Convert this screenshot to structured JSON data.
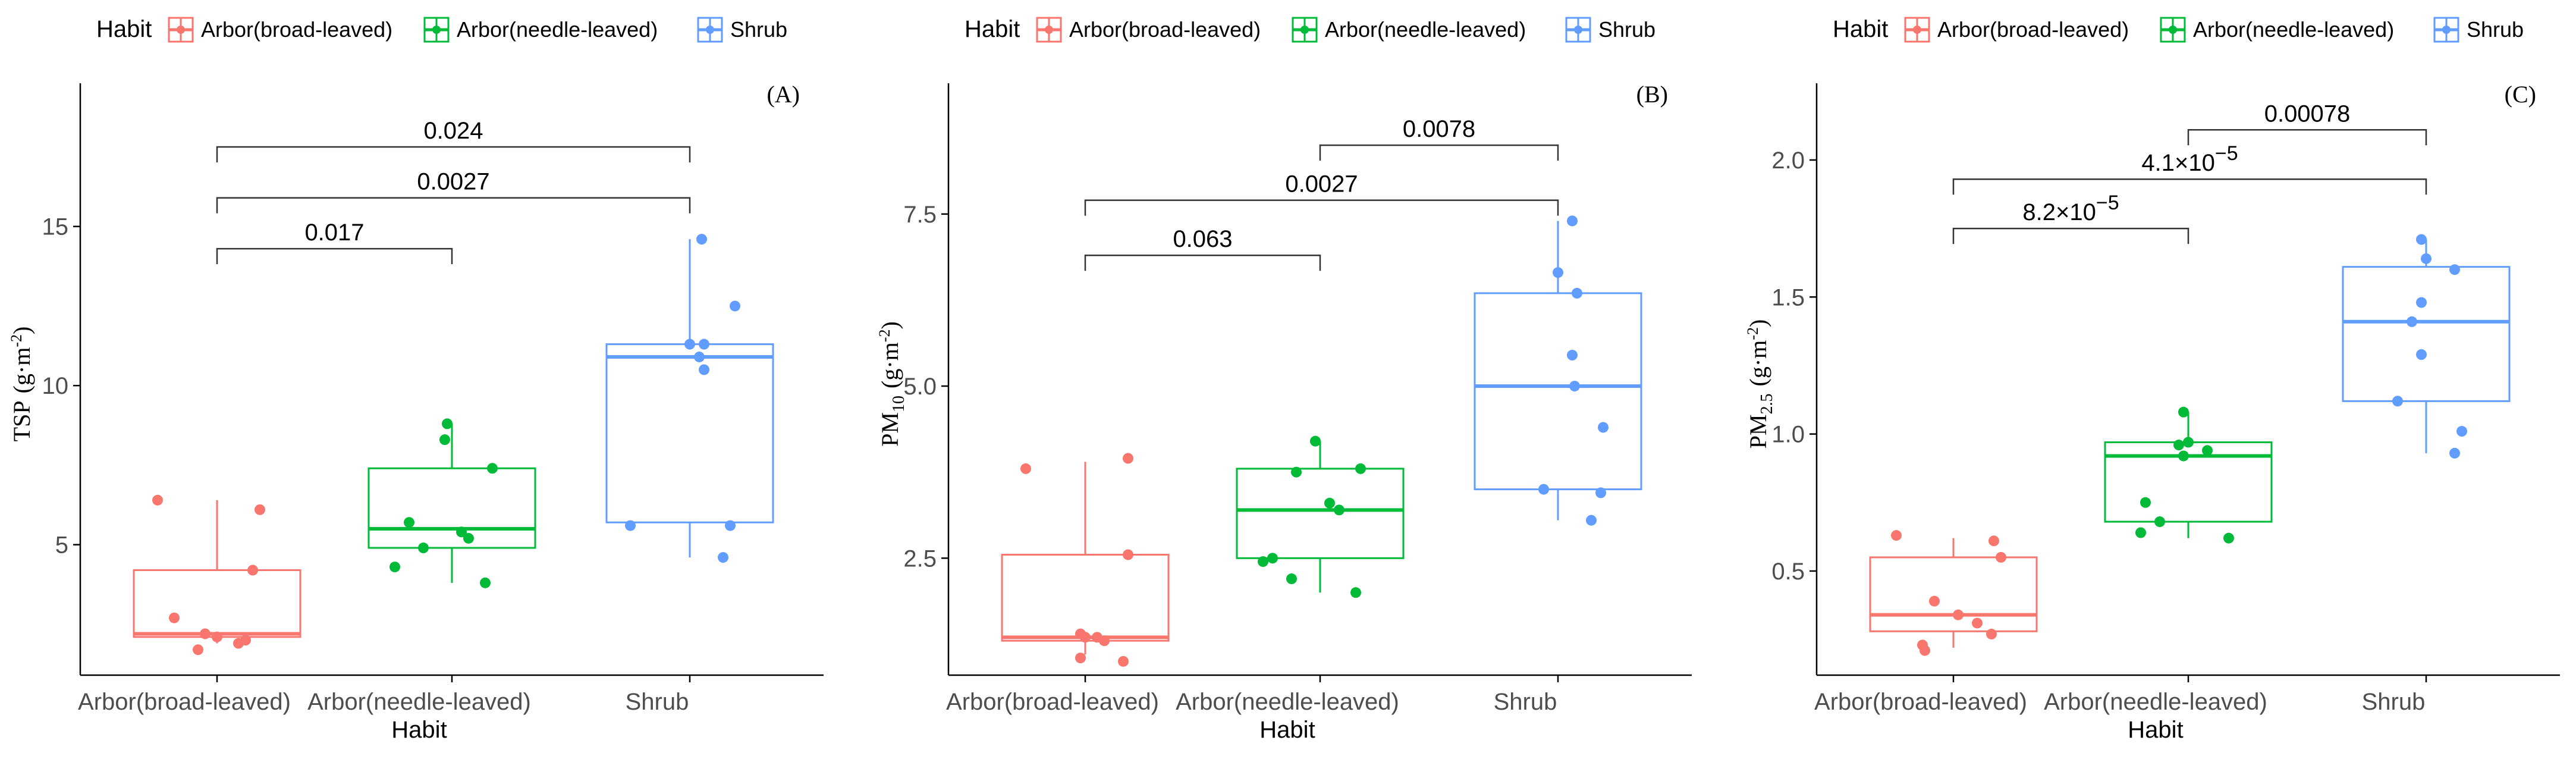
{
  "colors": {
    "broad": "#F8766D",
    "needle": "#00BA38",
    "shrub": "#619CFF",
    "axis": "#000000",
    "tick_text": "#4d4d4d",
    "bracket": "#333333"
  },
  "chart_data": [
    {
      "type": "box",
      "panel_label": "(A)",
      "legend": {
        "title": "Habit",
        "entries": [
          "Arbor(broad-leaved)",
          "Arbor(needle-leaved)",
          "Shrub"
        ],
        "position": "top"
      },
      "ylabel": {
        "main": "TSP",
        "sub": "",
        "unit_pre": "(g·m",
        "unit_exp": "-2",
        "unit_post": ")"
      },
      "xlabel": "Habit",
      "categories": [
        "Arbor(broad-leaved)",
        "Arbor(needle-leaved)",
        "Shrub"
      ],
      "ylim": [
        0.9,
        19.5
      ],
      "yticks": [
        5,
        10,
        15
      ],
      "ytick_labels": [
        "5",
        "10",
        "15"
      ],
      "boxes": [
        {
          "min": 1.9,
          "q1": 2.1,
          "median": 2.2,
          "q3": 4.2,
          "max": 6.4
        },
        {
          "min": 3.8,
          "q1": 4.9,
          "median": 5.5,
          "q3": 7.4,
          "max": 8.8
        },
        {
          "min": 4.6,
          "q1": 5.7,
          "median": 10.9,
          "q3": 11.3,
          "max": 14.6
        }
      ],
      "points": [
        [
          [
            6.4,
            -0.25
          ],
          [
            6.1,
            0.18
          ],
          [
            4.2,
            0.15
          ],
          [
            2.7,
            -0.18
          ],
          [
            2.2,
            -0.05
          ],
          [
            2.1,
            0.0
          ],
          [
            2.0,
            0.12
          ],
          [
            1.9,
            0.09
          ],
          [
            1.7,
            -0.08
          ]
        ],
        [
          [
            8.8,
            -0.02
          ],
          [
            8.3,
            -0.03
          ],
          [
            7.4,
            0.17
          ],
          [
            5.7,
            -0.18
          ],
          [
            5.4,
            0.04
          ],
          [
            5.2,
            0.07
          ],
          [
            4.9,
            -0.12
          ],
          [
            4.3,
            -0.24
          ],
          [
            3.8,
            0.14
          ]
        ],
        [
          [
            14.6,
            0.05
          ],
          [
            12.5,
            0.19
          ],
          [
            11.3,
            0.0
          ],
          [
            11.3,
            0.06
          ],
          [
            10.9,
            0.04
          ],
          [
            10.5,
            0.06
          ],
          [
            5.6,
            0.17
          ],
          [
            5.6,
            -0.25
          ],
          [
            4.6,
            0.14
          ]
        ]
      ],
      "brackets": [
        {
          "from": 0,
          "to": 2,
          "y": 17.5,
          "label": "0.024",
          "leftdrop": 1
        },
        {
          "from": 0,
          "to": 2,
          "y": 15.9,
          "label": "0.0027",
          "leftdrop": 0
        },
        {
          "from": 0,
          "to": 1,
          "y": 14.3,
          "label": "0.017",
          "leftdrop": 0
        }
      ]
    },
    {
      "type": "box",
      "panel_label": "(B)",
      "legend": {
        "title": "Habit",
        "entries": [
          "Arbor(broad-leaved)",
          "Arbor(needle-leaved)",
          "Shrub"
        ],
        "position": "top"
      },
      "ylabel": {
        "main": "PM",
        "sub": "10",
        "unit_pre": "(g·m",
        "unit_exp": "-2",
        "unit_post": ")"
      },
      "xlabel": "Habit",
      "categories": [
        "Arbor(broad-leaved)",
        "Arbor(needle-leaved)",
        "Shrub"
      ],
      "ylim": [
        0.8,
        9.4
      ],
      "yticks": [
        2.5,
        5.0,
        7.5
      ],
      "ytick_labels": [
        "2.5",
        "5.0",
        "7.5"
      ],
      "boxes": [
        {
          "min": 1.1,
          "q1": 1.3,
          "median": 1.35,
          "q3": 2.55,
          "max": 3.9
        },
        {
          "min": 2.0,
          "q1": 2.5,
          "median": 3.2,
          "q3": 3.8,
          "max": 4.2
        },
        {
          "min": 3.05,
          "q1": 3.5,
          "median": 5.0,
          "q3": 6.35,
          "max": 7.4
        }
      ],
      "points": [
        [
          [
            3.95,
            0.18
          ],
          [
            3.8,
            -0.25
          ],
          [
            2.55,
            0.18
          ],
          [
            1.4,
            -0.02
          ],
          [
            1.35,
            0.05
          ],
          [
            1.35,
            0.0
          ],
          [
            1.3,
            0.08
          ],
          [
            1.05,
            -0.02
          ],
          [
            1.0,
            0.16
          ]
        ],
        [
          [
            4.2,
            -0.02
          ],
          [
            3.8,
            0.17
          ],
          [
            3.3,
            0.04
          ],
          [
            3.2,
            0.08
          ],
          [
            2.5,
            -0.2
          ],
          [
            2.45,
            -0.24
          ],
          [
            2.2,
            -0.12
          ],
          [
            2.0,
            0.15
          ],
          [
            3.75,
            -0.1
          ]
        ],
        [
          [
            7.4,
            0.06
          ],
          [
            6.65,
            0.0
          ],
          [
            6.35,
            0.08
          ],
          [
            5.45,
            0.06
          ],
          [
            5.0,
            0.07
          ],
          [
            4.4,
            0.19
          ],
          [
            3.5,
            -0.06
          ],
          [
            3.45,
            0.18
          ],
          [
            3.05,
            0.14
          ]
        ]
      ],
      "brackets": [
        {
          "from": 1,
          "to": 2,
          "y": 8.5,
          "label": "0.0078",
          "leftdrop": 1
        },
        {
          "from": 0,
          "to": 2,
          "y": 7.7,
          "label": "0.0027",
          "leftdrop": 0
        },
        {
          "from": 0,
          "to": 1,
          "y": 6.9,
          "label": "0.063",
          "leftdrop": 0
        }
      ]
    },
    {
      "type": "box",
      "panel_label": "(C)",
      "legend": {
        "title": "Habit",
        "entries": [
          "Arbor(broad-leaved)",
          "Arbor(needle-leaved)",
          "Shrub"
        ],
        "position": "top"
      },
      "ylabel": {
        "main": "PM",
        "sub": "2.5",
        "unit_pre": "(g·m",
        "unit_exp": "-2",
        "unit_post": ")"
      },
      "xlabel": "Habit",
      "categories": [
        "Arbor(broad-leaved)",
        "Arbor(needle-leaved)",
        "Shrub"
      ],
      "ylim": [
        0.12,
        2.28
      ],
      "yticks": [
        0.5,
        1.0,
        1.5,
        2.0
      ],
      "ytick_labels": [
        "0.5",
        "1.0",
        "1.5",
        "2.0"
      ],
      "boxes": [
        {
          "min": 0.22,
          "q1": 0.28,
          "median": 0.34,
          "q3": 0.55,
          "max": 0.62
        },
        {
          "min": 0.62,
          "q1": 0.68,
          "median": 0.92,
          "q3": 0.97,
          "max": 1.08
        },
        {
          "min": 0.93,
          "q1": 1.12,
          "median": 1.41,
          "q3": 1.61,
          "max": 1.71
        }
      ],
      "points": [
        [
          [
            0.63,
            -0.24
          ],
          [
            0.61,
            0.17
          ],
          [
            0.55,
            0.2
          ],
          [
            0.39,
            -0.08
          ],
          [
            0.34,
            0.02
          ],
          [
            0.31,
            0.1
          ],
          [
            0.27,
            0.16
          ],
          [
            0.23,
            -0.13
          ],
          [
            0.21,
            -0.12
          ]
        ],
        [
          [
            1.08,
            -0.02
          ],
          [
            0.97,
            0.0
          ],
          [
            0.96,
            -0.04
          ],
          [
            0.94,
            0.08
          ],
          [
            0.92,
            -0.02
          ],
          [
            0.75,
            -0.18
          ],
          [
            0.68,
            -0.12
          ],
          [
            0.64,
            -0.2
          ],
          [
            0.62,
            0.17
          ]
        ],
        [
          [
            1.71,
            -0.02
          ],
          [
            1.64,
            0.0
          ],
          [
            1.6,
            0.12
          ],
          [
            1.48,
            -0.02
          ],
          [
            1.41,
            -0.06
          ],
          [
            1.29,
            -0.02
          ],
          [
            1.12,
            -0.12
          ],
          [
            1.01,
            0.15
          ],
          [
            0.93,
            0.12
          ]
        ]
      ],
      "brackets": [
        {
          "from": 1,
          "to": 2,
          "y": 2.11,
          "label": "0.00078",
          "leftdrop": 1
        },
        {
          "from": 0,
          "to": 2,
          "y": 1.93,
          "label_base": "4.1×10",
          "label_exp": "−5",
          "leftdrop": 0
        },
        {
          "from": 0,
          "to": 1,
          "y": 1.75,
          "label_base": "8.2×10",
          "label_exp": "−5",
          "leftdrop": 0
        }
      ]
    }
  ]
}
